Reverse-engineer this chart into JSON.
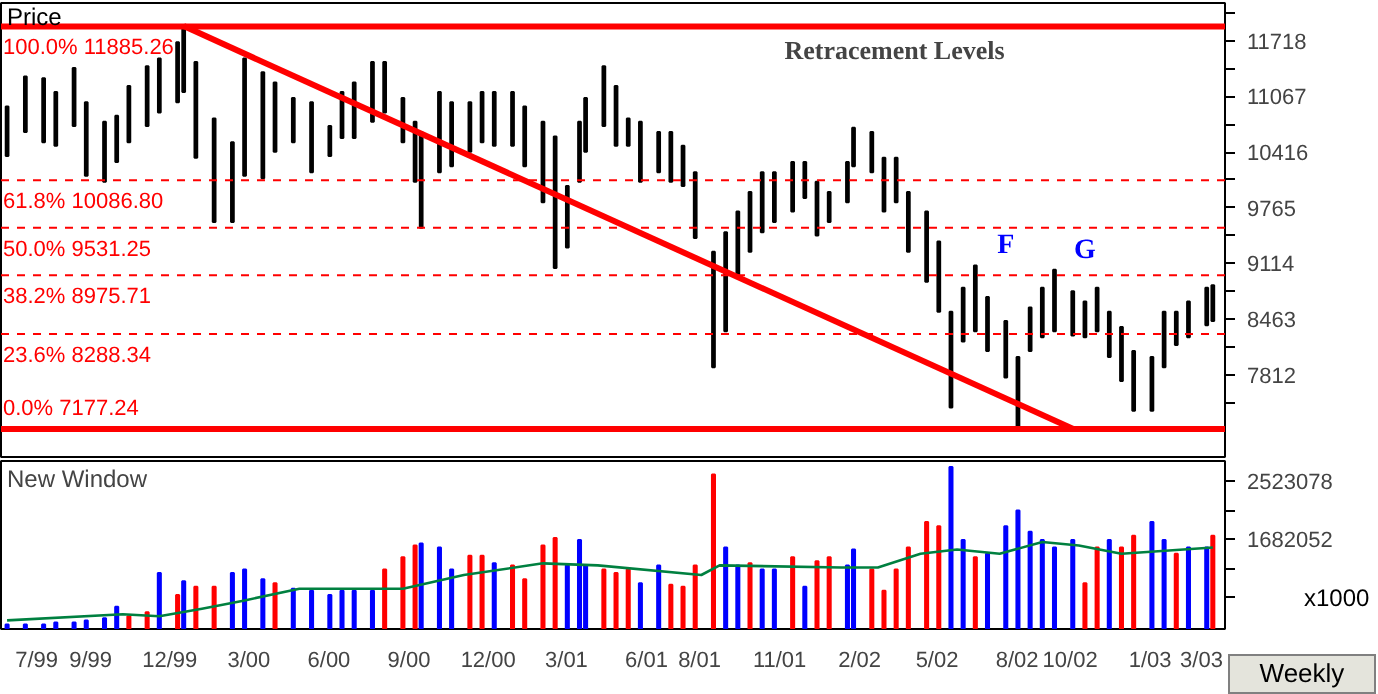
{
  "chart_data": [
    {
      "type": "bar",
      "title": "Retracement Levels",
      "ylabel": "Price",
      "tick_labels": "y",
      "xlim": [
        "1999-05-21",
        "2003-03-28"
      ],
      "ylim": [
        6850,
        12160
      ],
      "xticks": [
        "1999-07-01",
        "1999-09-01",
        "1999-12-01",
        "2000-03-01",
        "2000-06-01",
        "2000-09-01",
        "2000-12-01",
        "2001-03-01",
        "2001-06-01",
        "2001-08-01",
        "2001-11-01",
        "2002-02-01",
        "2002-05-01",
        "2002-08-01",
        "2002-10-01",
        "2003-01-01",
        "2003-03-01"
      ],
      "yticks": [
        {
          "value": 7486.5,
          "label": null
        },
        7812,
        {
          "value": 8137.5,
          "label": null
        },
        8463,
        {
          "value": 8788.5,
          "label": null
        },
        9114,
        {
          "value": 9439.5,
          "label": null
        },
        9765,
        {
          "value": 10090.5,
          "label": null
        },
        10416,
        {
          "value": 10741.5,
          "label": null
        },
        11067,
        {
          "value": 11392.5,
          "label": null
        },
        11718,
        {
          "value": 12043.5,
          "label": null
        }
      ],
      "series": [
        {
          "color": "#000000",
          "x": [
            "1999-05-28",
            "1999-06-18",
            "1999-07-09",
            "1999-07-23",
            "1999-08-13",
            "1999-08-27",
            "1999-09-17",
            "1999-10-01",
            "1999-10-15",
            "1999-11-05",
            "1999-11-19",
            "1999-12-10",
            "1999-12-17",
            "1999-12-31",
            "2000-01-21",
            "2000-02-11",
            "2000-02-25",
            "2000-03-17",
            "2000-03-31",
            "2000-04-21",
            "2000-05-12",
            "2000-06-02",
            "2000-06-16",
            "2000-06-30",
            "2000-07-21",
            "2000-08-04",
            "2000-08-25",
            "2000-09-08",
            "2000-09-15",
            "2000-10-06",
            "2000-10-20",
            "2000-11-10",
            "2000-11-24",
            "2000-12-08",
            "2000-12-29",
            "2001-01-12",
            "2001-02-02",
            "2001-02-16",
            "2001-03-02",
            "2001-03-16",
            "2001-03-23",
            "2001-04-13",
            "2001-04-27",
            "2001-05-11",
            "2001-05-25",
            "2001-06-15",
            "2001-06-29",
            "2001-07-13",
            "2001-07-27",
            "2001-08-17",
            "2001-08-31",
            "2001-09-14",
            "2001-09-28",
            "2001-10-12",
            "2001-10-26",
            "2001-11-16",
            "2001-11-30",
            "2001-12-14",
            "2001-12-28",
            "2002-01-18",
            "2002-01-25",
            "2002-02-15",
            "2002-03-01",
            "2002-03-15",
            "2002-03-29",
            "2002-04-19",
            "2002-05-03",
            "2002-05-17",
            "2002-05-31",
            "2002-06-14",
            "2002-06-28",
            "2002-07-19",
            "2002-08-02",
            "2002-08-16",
            "2002-08-30",
            "2002-09-13",
            "2002-10-04",
            "2002-10-18",
            "2002-11-01",
            "2002-11-15",
            "2002-11-29",
            "2002-12-13",
            "2003-01-03",
            "2003-01-17",
            "2003-01-31",
            "2003-02-14",
            "2003-03-07",
            "2003-03-14"
          ],
          "base": [
            10370,
            10650,
            10530,
            10490,
            10720,
            10140,
            10070,
            10300,
            10530,
            10720,
            10880,
            11000,
            11120,
            10350,
            9600,
            9600,
            10140,
            10110,
            10420,
            10530,
            10180,
            10370,
            10580,
            10580,
            10770,
            10880,
            10530,
            10070,
            9530,
            10180,
            10250,
            10420,
            10530,
            10490,
            10490,
            10250,
            9830,
            9060,
            9300,
            10070,
            10420,
            10720,
            10490,
            10490,
            10070,
            10180,
            10070,
            10020,
            9410,
            7900,
            8320,
            8950,
            9250,
            9480,
            9600,
            9720,
            9880,
            9440,
            9600,
            9830,
            10250,
            10180,
            9720,
            9830,
            9250,
            8900,
            8550,
            7430,
            8200,
            8320,
            8090,
            7780,
            7180,
            8090,
            8250,
            8320,
            8270,
            8250,
            8320,
            8020,
            7740,
            7390,
            7390,
            7900,
            8160,
            8250,
            8390,
            8440
          ],
          "values": [
            580,
            650,
            750,
            630,
            680,
            860,
            700,
            540,
            660,
            700,
            630,
            700,
            770,
            1120,
            1210,
            930,
            1370,
            1240,
            810,
            520,
            820,
            350,
            540,
            650,
            700,
            590,
            520,
            700,
            1120,
            940,
            750,
            580,
            590,
            630,
            630,
            700,
            940,
            1540,
            720,
            700,
            630,
            700,
            700,
            320,
            700,
            470,
            580,
            470,
            770,
            1350,
            1160,
            770,
            700,
            700,
            580,
            580,
            420,
            630,
            350,
            470,
            450,
            470,
            630,
            520,
            700,
            820,
            820,
            1120,
            630,
            770,
            630,
            660,
            840,
            510,
            580,
            720,
            520,
            420,
            510,
            530,
            630,
            700,
            630,
            650,
            390,
            420,
            440,
            420
          ]
        },
        {
          "type": "line",
          "color": "#ff0000",
          "x": [
            "1999-12-17",
            "2002-10-04"
          ],
          "values": [
            11890,
            7180
          ]
        }
      ],
      "ref_lines": [
        {
          "axis": "y",
          "value": 11885.26,
          "label": "100.0% 11885.26",
          "color": "#ff0000",
          "line_style": "solid"
        },
        {
          "axis": "y",
          "value": 10086.8,
          "label": "61.8% 10086.80",
          "color": "#ff0000",
          "line_style": "dashed"
        },
        {
          "axis": "y",
          "value": 9531.25,
          "label": "50.0% 9531.25",
          "color": "#ff0000",
          "line_style": "dashed"
        },
        {
          "axis": "y",
          "value": 8975.71,
          "label": "38.2% 8975.71",
          "color": "#ff0000",
          "line_style": "dashed"
        },
        {
          "axis": "y",
          "value": 8288.34,
          "label": "23.6% 8288.34",
          "color": "#ff0000",
          "line_style": "dashed"
        },
        {
          "axis": "y",
          "value": 7177.24,
          "label": "0.0% 7177.24",
          "color": "#ff0000",
          "line_style": "solid"
        }
      ],
      "annotations": [
        {
          "text": "F",
          "x": "2002-07-19",
          "y": 9090
        },
        {
          "text": "G",
          "x": "2002-10-18",
          "y": 9040
        }
      ]
    },
    {
      "type": "bar",
      "title": "New Window",
      "annotations": [
        "x1000",
        "Weekly"
      ],
      "xlim": [
        "1999-05-21",
        "2003-03-28"
      ],
      "ylim": [
        375000,
        2818000
      ],
      "xticks": [
        {
          "value": "1999-07-01",
          "label": "7/99"
        },
        {
          "value": "1999-09-01",
          "label": "9/99"
        },
        {
          "value": "1999-12-01",
          "label": "12/99"
        },
        {
          "value": "2000-03-01",
          "label": "3/00"
        },
        {
          "value": "2000-06-01",
          "label": "6/00"
        },
        {
          "value": "2000-09-01",
          "label": "9/00"
        },
        {
          "value": "2000-12-01",
          "label": "12/00"
        },
        {
          "value": "2001-03-01",
          "label": "3/01"
        },
        {
          "value": "2001-06-01",
          "label": "6/01"
        },
        {
          "value": "2001-08-01",
          "label": "8/01"
        },
        {
          "value": "2001-11-01",
          "label": "11/01"
        },
        {
          "value": "2002-02-01",
          "label": "2/02"
        },
        {
          "value": "2002-05-01",
          "label": "5/02"
        },
        {
          "value": "2002-08-01",
          "label": "8/02"
        },
        {
          "value": "2002-10-01",
          "label": "10/02"
        },
        {
          "value": "2003-01-01",
          "label": "1/03"
        },
        {
          "value": "2003-03-01",
          "label": "3/03"
        }
      ],
      "yticks": [
        {
          "value": 841026,
          "label": null
        },
        {
          "value": 1261539,
          "label": null
        },
        1682052,
        {
          "value": 2102565,
          "label": null
        },
        2523078
      ],
      "series": [
        {
          "x": [
            "1999-05-28",
            "1999-06-18",
            "1999-07-09",
            "1999-07-23",
            "1999-08-13",
            "1999-08-27",
            "1999-09-17",
            "1999-10-01",
            "1999-10-15",
            "1999-11-05",
            "1999-11-19",
            "1999-12-10",
            "1999-12-17",
            "1999-12-31",
            "2000-01-21",
            "2000-02-11",
            "2000-02-25",
            "2000-03-17",
            "2000-03-31",
            "2000-04-21",
            "2000-05-12",
            "2000-06-02",
            "2000-06-16",
            "2000-06-30",
            "2000-07-21",
            "2000-08-04",
            "2000-08-25",
            "2000-09-08",
            "2000-09-15",
            "2000-10-06",
            "2000-10-20",
            "2000-11-10",
            "2000-11-24",
            "2000-12-08",
            "2000-12-29",
            "2001-01-12",
            "2001-02-02",
            "2001-02-16",
            "2001-03-02",
            "2001-03-16",
            "2001-03-23",
            "2001-04-13",
            "2001-04-27",
            "2001-05-11",
            "2001-05-25",
            "2001-06-15",
            "2001-06-29",
            "2001-07-13",
            "2001-07-27",
            "2001-08-17",
            "2001-08-31",
            "2001-09-14",
            "2001-09-28",
            "2001-10-12",
            "2001-10-26",
            "2001-11-16",
            "2001-11-30",
            "2001-12-14",
            "2001-12-28",
            "2002-01-18",
            "2002-01-25",
            "2002-02-15",
            "2002-03-01",
            "2002-03-15",
            "2002-03-29",
            "2002-04-19",
            "2002-05-03",
            "2002-05-17",
            "2002-05-31",
            "2002-06-14",
            "2002-06-28",
            "2002-07-19",
            "2002-08-02",
            "2002-08-16",
            "2002-08-30",
            "2002-09-13",
            "2002-10-04",
            "2002-10-18",
            "2002-11-01",
            "2002-11-15",
            "2002-11-29",
            "2002-12-13",
            "2003-01-03",
            "2003-01-17",
            "2003-01-31",
            "2003-02-14",
            "2003-03-07",
            "2003-03-14"
          ],
          "base": [
            375000,
            375000,
            375000,
            375000,
            375000,
            375000,
            375000,
            375000,
            375000,
            375000,
            375000,
            375000,
            375000,
            375000,
            375000,
            375000,
            375000,
            375000,
            375000,
            375000,
            375000,
            375000,
            375000,
            375000,
            375000,
            375000,
            375000,
            375000,
            375000,
            375000,
            375000,
            375000,
            375000,
            375000,
            375000,
            375000,
            375000,
            375000,
            375000,
            375000,
            375000,
            375000,
            375000,
            375000,
            375000,
            375000,
            375000,
            375000,
            375000,
            375000,
            375000,
            375000,
            375000,
            375000,
            375000,
            375000,
            375000,
            375000,
            375000,
            375000,
            375000,
            375000,
            375000,
            375000,
            375000,
            375000,
            375000,
            375000,
            375000,
            375000,
            375000,
            375000,
            375000,
            375000,
            375000,
            375000,
            375000,
            375000,
            375000,
            375000,
            375000,
            375000,
            375000,
            375000,
            375000,
            375000,
            375000,
            375000
          ],
          "values": [
            65000,
            65000,
            65000,
            95000,
            95000,
            125000,
            155000,
            325000,
            185000,
            245000,
            815000,
            495000,
            695000,
            615000,
            615000,
            815000,
            865000,
            725000,
            665000,
            585000,
            555000,
            495000,
            555000,
            555000,
            555000,
            865000,
            1045000,
            1215000,
            1245000,
            1185000,
            865000,
            1065000,
            1065000,
            955000,
            925000,
            725000,
            1215000,
            1325000,
            925000,
            1295000,
            925000,
            865000,
            815000,
            865000,
            665000,
            925000,
            645000,
            615000,
            925000,
            2245000,
            1185000,
            925000,
            955000,
            865000,
            865000,
            1045000,
            615000,
            985000,
            1045000,
            925000,
            1155000,
            865000,
            555000,
            865000,
            1185000,
            1555000,
            1495000,
            2355000,
            1295000,
            1045000,
            1095000,
            1495000,
            1725000,
            1415000,
            1295000,
            1185000,
            1295000,
            665000,
            1185000,
            1295000,
            1185000,
            1355000,
            1555000,
            1295000,
            1095000,
            1185000,
            1185000,
            1355000
          ],
          "colors": [
            "#0000ff",
            "#0000ff",
            "#0000ff",
            "#0000ff",
            "#0000ff",
            "#0000ff",
            "#0000ff",
            "#0000ff",
            "#ff0000",
            "#ff0000",
            "#0000ff",
            "#ff0000",
            "#0000ff",
            "#ff0000",
            "#ff0000",
            "#0000ff",
            "#0000ff",
            "#0000ff",
            "#ff0000",
            "#0000ff",
            "#0000ff",
            "#0000ff",
            "#0000ff",
            "#0000ff",
            "#0000ff",
            "#ff0000",
            "#ff0000",
            "#ff0000",
            "#0000ff",
            "#0000ff",
            "#0000ff",
            "#ff0000",
            "#ff0000",
            "#0000ff",
            "#ff0000",
            "#ff0000",
            "#ff0000",
            "#ff0000",
            "#0000ff",
            "#0000ff",
            "#0000ff",
            "#ff0000",
            "#ff0000",
            "#ff0000",
            "#0000ff",
            "#0000ff",
            "#ff0000",
            "#ff0000",
            "#ff0000",
            "#ff0000",
            "#0000ff",
            "#0000ff",
            "#ff0000",
            "#0000ff",
            "#0000ff",
            "#ff0000",
            "#0000ff",
            "#ff0000",
            "#ff0000",
            "#0000ff",
            "#0000ff",
            "#ff0000",
            "#ff0000",
            "#ff0000",
            "#ff0000",
            "#ff0000",
            "#ff0000",
            "#0000ff",
            "#0000ff",
            "#ff0000",
            "#0000ff",
            "#0000ff",
            "#0000ff",
            "#0000ff",
            "#0000ff",
            "#0000ff",
            "#0000ff",
            "#ff0000",
            "#ff0000",
            "#0000ff",
            "#ff0000",
            "#ff0000",
            "#0000ff",
            "#0000ff",
            "#ff0000",
            "#0000ff",
            "#0000ff",
            "#ff0000"
          ]
        },
        {
          "type": "line",
          "color": "#008040",
          "x": [
            "1999-05-28",
            "1999-10-08",
            "1999-11-19",
            "2000-01-07",
            "2000-02-25",
            "2000-04-28",
            "2000-08-25",
            "2000-11-03",
            "2001-02-02",
            "2001-04-06",
            "2001-08-03",
            "2001-08-24",
            "2002-01-11",
            "2002-02-22",
            "2002-04-12",
            "2002-05-24",
            "2002-07-12",
            "2002-08-30",
            "2002-10-11",
            "2002-11-29",
            "2003-03-14"
          ],
          "values": [
            500000,
            590000,
            560000,
            670000,
            790000,
            960000,
            960000,
            1160000,
            1330000,
            1300000,
            1160000,
            1300000,
            1270000,
            1270000,
            1470000,
            1530000,
            1470000,
            1640000,
            1590000,
            1470000,
            1560000
          ]
        }
      ]
    }
  ]
}
